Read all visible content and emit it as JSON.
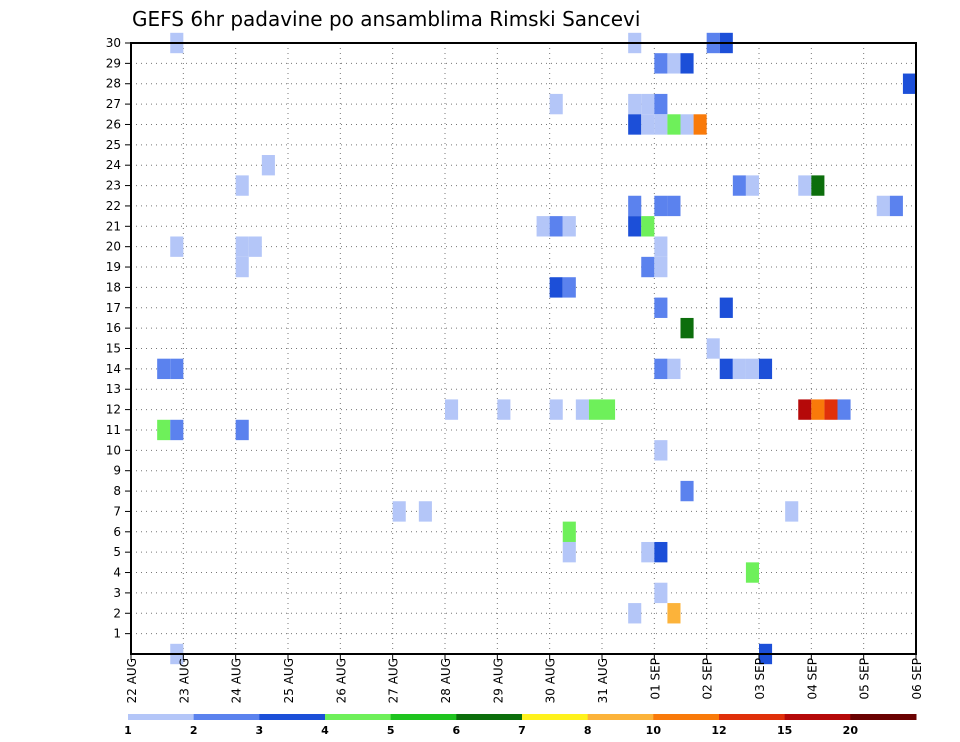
{
  "chart_data": {
    "type": "heatmap",
    "title": "GEFS 6hr padavine po ansamblima Rimski Sancevi",
    "xlabel": "",
    "ylabel": "",
    "x_tick_labels": [
      "22 AUG",
      "23 AUG",
      "24 AUG",
      "25 AUG",
      "26 AUG",
      "27 AUG",
      "28 AUG",
      "29 AUG",
      "30 AUG",
      "31 AUG",
      "01 SEP",
      "02 SEP",
      "03 SEP",
      "04 SEP",
      "05 SEP",
      "06 SEP"
    ],
    "xlim_days": [
      0,
      15
    ],
    "y_tick_labels": [
      "1",
      "2",
      "3",
      "4",
      "5",
      "6",
      "7",
      "8",
      "9",
      "10",
      "11",
      "12",
      "13",
      "14",
      "15",
      "16",
      "17",
      "18",
      "19",
      "20",
      "21",
      "22",
      "23",
      "24",
      "25",
      "26",
      "27",
      "28",
      "29",
      "30"
    ],
    "ylim": [
      0,
      30
    ],
    "grid": true,
    "step_hours": 6,
    "colorbar": {
      "ticks": [
        "1",
        "2",
        "3",
        "4",
        "5",
        "6",
        "7",
        "8",
        "10",
        "12",
        "15",
        "20"
      ],
      "colors": [
        "#b4c6f8",
        "#5b82ee",
        "#1c4fd8",
        "#6ef05a",
        "#1fc41f",
        "#0c6e0c",
        "#fff21c",
        "#fcb33a",
        "#f97a0a",
        "#e0300a",
        "#b50909",
        "#6a0202"
      ]
    },
    "cells": [
      {
        "member": 30,
        "time": "22 AUG 18",
        "value": 1.5
      },
      {
        "member": 30,
        "time": "31 AUG 12",
        "value": 1.5
      },
      {
        "member": 30,
        "time": "02 SEP 00",
        "value": 2.5
      },
      {
        "member": 30,
        "time": "02 SEP 06",
        "value": 3.5
      },
      {
        "member": 29,
        "time": "01 SEP 00",
        "value": 2.5
      },
      {
        "member": 29,
        "time": "01 SEP 06",
        "value": 1.5
      },
      {
        "member": 29,
        "time": "01 SEP 12",
        "value": 3.5
      },
      {
        "member": 28,
        "time": "05 SEP 18",
        "value": 3.5
      },
      {
        "member": 27,
        "time": "30 AUG 00",
        "value": 1.5
      },
      {
        "member": 27,
        "time": "31 AUG 12",
        "value": 1.5
      },
      {
        "member": 27,
        "time": "31 AUG 18",
        "value": 1.5
      },
      {
        "member": 27,
        "time": "01 SEP 00",
        "value": 2.5
      },
      {
        "member": 26,
        "time": "31 AUG 12",
        "value": 3.5
      },
      {
        "member": 26,
        "time": "31 AUG 18",
        "value": 1.5
      },
      {
        "member": 26,
        "time": "01 SEP 00",
        "value": 1.5
      },
      {
        "member": 26,
        "time": "01 SEP 06",
        "value": 4.5
      },
      {
        "member": 26,
        "time": "01 SEP 12",
        "value": 1.5
      },
      {
        "member": 26,
        "time": "01 SEP 18",
        "value": 11
      },
      {
        "member": 24,
        "time": "24 AUG 12",
        "value": 1.5
      },
      {
        "member": 23,
        "time": "24 AUG 00",
        "value": 1.5
      },
      {
        "member": 23,
        "time": "02 SEP 12",
        "value": 2.5
      },
      {
        "member": 23,
        "time": "02 SEP 18",
        "value": 1.5
      },
      {
        "member": 23,
        "time": "03 SEP 18",
        "value": 1.5
      },
      {
        "member": 23,
        "time": "04 SEP 00",
        "value": 6.5
      },
      {
        "member": 22,
        "time": "31 AUG 12",
        "value": 2.5
      },
      {
        "member": 22,
        "time": "01 SEP 00",
        "value": 2.5
      },
      {
        "member": 22,
        "time": "01 SEP 06",
        "value": 2.5
      },
      {
        "member": 22,
        "time": "05 SEP 06",
        "value": 1.5
      },
      {
        "member": 22,
        "time": "05 SEP 12",
        "value": 2.5
      },
      {
        "member": 21,
        "time": "29 AUG 18",
        "value": 1.5
      },
      {
        "member": 21,
        "time": "30 AUG 00",
        "value": 2.5
      },
      {
        "member": 21,
        "time": "30 AUG 06",
        "value": 1.5
      },
      {
        "member": 21,
        "time": "31 AUG 12",
        "value": 3.5
      },
      {
        "member": 21,
        "time": "31 AUG 18",
        "value": 4.5
      },
      {
        "member": 20,
        "time": "22 AUG 18",
        "value": 1.5
      },
      {
        "member": 20,
        "time": "24 AUG 00",
        "value": 1.5
      },
      {
        "member": 20,
        "time": "24 AUG 06",
        "value": 1.5
      },
      {
        "member": 20,
        "time": "01 SEP 00",
        "value": 1.5
      },
      {
        "member": 19,
        "time": "24 AUG 00",
        "value": 1.5
      },
      {
        "member": 19,
        "time": "31 AUG 18",
        "value": 2.5
      },
      {
        "member": 19,
        "time": "01 SEP 00",
        "value": 1.5
      },
      {
        "member": 18,
        "time": "30 AUG 00",
        "value": 3.5
      },
      {
        "member": 18,
        "time": "30 AUG 06",
        "value": 2.5
      },
      {
        "member": 17,
        "time": "01 SEP 00",
        "value": 2.5
      },
      {
        "member": 17,
        "time": "02 SEP 06",
        "value": 3.5
      },
      {
        "member": 16,
        "time": "01 SEP 12",
        "value": 6.5
      },
      {
        "member": 15,
        "time": "02 SEP 00",
        "value": 1.5
      },
      {
        "member": 14,
        "time": "22 AUG 12",
        "value": 2.5
      },
      {
        "member": 14,
        "time": "22 AUG 18",
        "value": 2.5
      },
      {
        "member": 14,
        "time": "01 SEP 00",
        "value": 2.5
      },
      {
        "member": 14,
        "time": "01 SEP 06",
        "value": 1.5
      },
      {
        "member": 14,
        "time": "02 SEP 06",
        "value": 3.5
      },
      {
        "member": 14,
        "time": "02 SEP 12",
        "value": 1.5
      },
      {
        "member": 14,
        "time": "02 SEP 18",
        "value": 1.5
      },
      {
        "member": 14,
        "time": "03 SEP 00",
        "value": 3.5
      },
      {
        "member": 12,
        "time": "28 AUG 00",
        "value": 1.5
      },
      {
        "member": 12,
        "time": "29 AUG 00",
        "value": 1.5
      },
      {
        "member": 12,
        "time": "30 AUG 00",
        "value": 1.5
      },
      {
        "member": 12,
        "time": "30 AUG 12",
        "value": 1.5
      },
      {
        "member": 12,
        "time": "30 AUG 18",
        "value": 4.5
      },
      {
        "member": 12,
        "time": "31 AUG 00",
        "value": 4.5
      },
      {
        "member": 12,
        "time": "03 SEP 18",
        "value": 17
      },
      {
        "member": 12,
        "time": "04 SEP 00",
        "value": 11
      },
      {
        "member": 12,
        "time": "04 SEP 06",
        "value": 13
      },
      {
        "member": 12,
        "time": "04 SEP 12",
        "value": 2.5
      },
      {
        "member": 11,
        "time": "22 AUG 12",
        "value": 4.5
      },
      {
        "member": 11,
        "time": "22 AUG 18",
        "value": 2.5
      },
      {
        "member": 11,
        "time": "24 AUG 00",
        "value": 2.5
      },
      {
        "member": 10,
        "time": "01 SEP 00",
        "value": 1.5
      },
      {
        "member": 8,
        "time": "01 SEP 12",
        "value": 2.5
      },
      {
        "member": 7,
        "time": "27 AUG 00",
        "value": 1.5
      },
      {
        "member": 7,
        "time": "27 AUG 12",
        "value": 1.5
      },
      {
        "member": 7,
        "time": "03 SEP 12",
        "value": 1.5
      },
      {
        "member": 6,
        "time": "30 AUG 06",
        "value": 4.5
      },
      {
        "member": 5,
        "time": "30 AUG 06",
        "value": 1.5
      },
      {
        "member": 5,
        "time": "31 AUG 18",
        "value": 1.5
      },
      {
        "member": 5,
        "time": "01 SEP 00",
        "value": 3.5
      },
      {
        "member": 4,
        "time": "02 SEP 18",
        "value": 4.5
      },
      {
        "member": 3,
        "time": "01 SEP 00",
        "value": 1.5
      },
      {
        "member": 2,
        "time": "31 AUG 12",
        "value": 1.5
      },
      {
        "member": 2,
        "time": "01 SEP 06",
        "value": 9
      },
      {
        "member": 0,
        "time": "22 AUG 18",
        "value": 1.5
      },
      {
        "member": 0,
        "time": "03 SEP 00",
        "value": 3.5
      }
    ]
  }
}
